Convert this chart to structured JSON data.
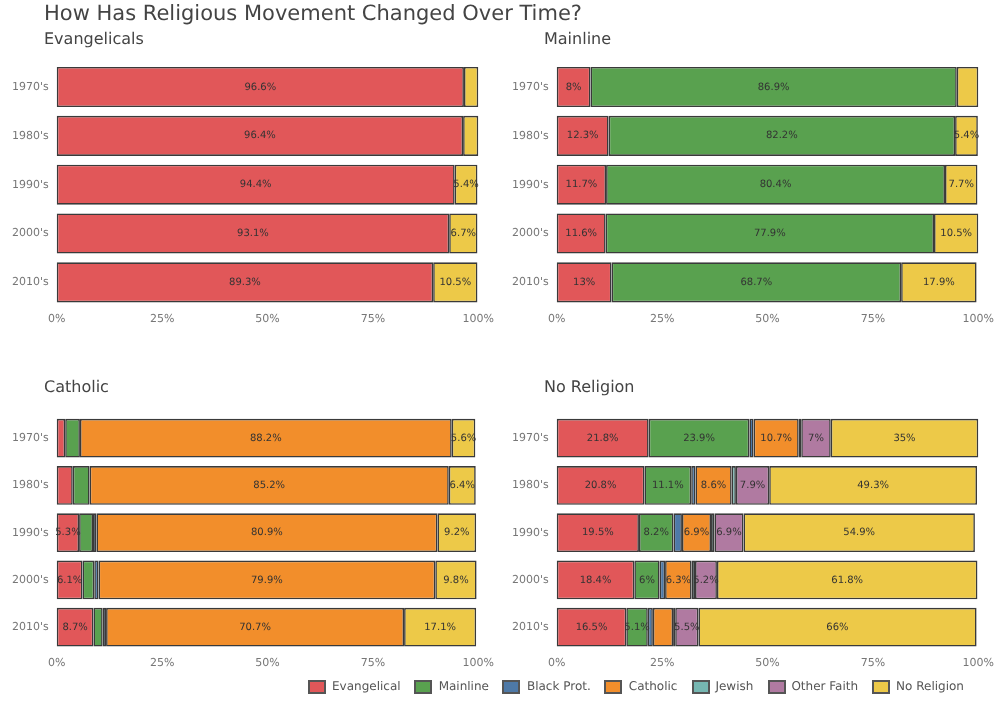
{
  "chart_data": [
    {
      "type": "bar",
      "orientation": "horizontal",
      "stacked": true,
      "title": "How Has Religious Movement Changed Over Time?",
      "subtitle": "Evangelicals",
      "categories": [
        "1970's",
        "1980's",
        "1990's",
        "2000's",
        "2010's"
      ],
      "xlim": [
        0,
        100
      ],
      "xticks": [
        {
          "value": 0,
          "label": "0%"
        },
        {
          "value": 25,
          "label": "25%"
        },
        {
          "value": 50,
          "label": "50%"
        },
        {
          "value": 75,
          "label": "75%"
        },
        {
          "value": 100,
          "label": "100%"
        }
      ],
      "series": [
        {
          "color": "#e15759",
          "values": [
            96.6,
            96.4,
            94.4,
            93.1,
            89.3
          ],
          "value_labels": [
            "96.6%",
            "96.4%",
            "94.4%",
            "93.1%",
            "89.3%"
          ]
        },
        {
          "color": "#edc948",
          "values": [
            3.4,
            3.6,
            5.4,
            6.7,
            10.5
          ],
          "value_labels": [
            null,
            null,
            "5.4%",
            "6.7%",
            "10.5%"
          ]
        }
      ]
    },
    {
      "type": "bar",
      "orientation": "horizontal",
      "stacked": true,
      "title": "Mainline",
      "categories": [
        "1970's",
        "1980's",
        "1990's",
        "2000's",
        "2010's"
      ],
      "xlim": [
        0,
        100
      ],
      "xticks": [
        {
          "value": 0,
          "label": "0%"
        },
        {
          "value": 25,
          "label": "25%"
        },
        {
          "value": 50,
          "label": "50%"
        },
        {
          "value": 75,
          "label": "75%"
        },
        {
          "value": 100,
          "label": "100%"
        }
      ],
      "series": [
        {
          "color": "#e15759",
          "values": [
            8,
            12.3,
            11.7,
            11.6,
            13
          ],
          "value_labels": [
            "8%",
            "12.3%",
            "11.7%",
            "11.6%",
            "13%"
          ]
        },
        {
          "color": "#59a14f",
          "values": [
            86.9,
            82.2,
            80.4,
            77.9,
            68.7
          ],
          "value_labels": [
            "86.9%",
            "82.2%",
            "80.4%",
            "77.9%",
            "68.7%"
          ]
        },
        {
          "color": "#edc948",
          "values": [
            5.1,
            5.4,
            7.7,
            10.5,
            17.9
          ],
          "value_labels": [
            null,
            "5.4%",
            "7.7%",
            "10.5%",
            "17.9%"
          ]
        }
      ]
    },
    {
      "type": "bar",
      "orientation": "horizontal",
      "stacked": true,
      "title": "Catholic",
      "categories": [
        "1970's",
        "1980's",
        "1990's",
        "2000's",
        "2010's"
      ],
      "xlim": [
        0,
        100
      ],
      "xticks": [
        {
          "value": 0,
          "label": "0%"
        },
        {
          "value": 25,
          "label": "25%"
        },
        {
          "value": 50,
          "label": "50%"
        },
        {
          "value": 75,
          "label": "75%"
        },
        {
          "value": 100,
          "label": "100%"
        }
      ],
      "series": [
        {
          "color": "#e15759",
          "values": [
            2,
            3.8,
            5.3,
            6.1,
            8.7
          ],
          "value_labels": [
            null,
            null,
            "5.3%",
            "6.1%",
            "8.7%"
          ]
        },
        {
          "color": "#59a14f",
          "values": [
            3.5,
            4,
            3.3,
            2.8,
            2.2
          ],
          "value_labels": [
            null,
            null,
            null,
            null,
            null
          ]
        },
        {
          "color": "#4e79a7",
          "values": [
            null,
            null,
            0.8,
            1,
            0.8
          ],
          "value_labels": [
            null,
            null,
            null,
            null,
            null
          ]
        },
        {
          "color": "#f28e2b",
          "values": [
            88.2,
            85.2,
            80.9,
            79.9,
            70.7
          ],
          "value_labels": [
            "88.2%",
            "85.2%",
            "80.9%",
            "79.9%",
            "70.7%"
          ]
        },
        {
          "color": "#edc948",
          "values": [
            5.6,
            6.4,
            9.2,
            9.8,
            17.1
          ],
          "value_labels": [
            "5.6%",
            "6.4%",
            "9.2%",
            "9.8%",
            "17.1%"
          ]
        }
      ]
    },
    {
      "type": "bar",
      "orientation": "horizontal",
      "stacked": true,
      "title": "No Religion",
      "legend": "bottom",
      "categories": [
        "1970's",
        "1980's",
        "1990's",
        "2000's",
        "2010's"
      ],
      "xlim": [
        0,
        100
      ],
      "xticks": [
        {
          "value": 0,
          "label": "0%"
        },
        {
          "value": 25,
          "label": "25%"
        },
        {
          "value": 50,
          "label": "50%"
        },
        {
          "value": 75,
          "label": "75%"
        },
        {
          "value": 100,
          "label": "100%"
        }
      ],
      "series": [
        {
          "name": "Evangelical",
          "color": "#e15759",
          "values": [
            21.8,
            20.8,
            19.5,
            18.4,
            16.5
          ],
          "value_labels": [
            "21.8%",
            "20.8%",
            "19.5%",
            "18.4%",
            "16.5%"
          ]
        },
        {
          "name": "Mainline",
          "color": "#59a14f",
          "values": [
            23.9,
            11.1,
            8.2,
            6,
            5.1
          ],
          "value_labels": [
            "23.9%",
            "11.1%",
            "8.2%",
            "6%",
            "5.1%"
          ]
        },
        {
          "name": "Black Prot.",
          "color": "#4e79a7",
          "values": [
            1,
            1,
            2,
            1.3,
            1.2
          ],
          "value_labels": [
            null,
            null,
            null,
            null,
            null
          ]
        },
        {
          "name": "Catholic",
          "color": "#f28e2b",
          "values": [
            10.7,
            8.6,
            6.9,
            6.3,
            4.8
          ],
          "value_labels": [
            "10.7%",
            "8.6%",
            "6.9%",
            "6.3%",
            null
          ]
        },
        {
          "name": "Jewish",
          "color": "#76b7b2",
          "values": [
            0.6,
            1,
            0.8,
            0.8,
            0.5
          ],
          "value_labels": [
            null,
            null,
            null,
            null,
            null
          ]
        },
        {
          "name": "Other Faith",
          "color": "#b07aa1",
          "values": [
            7,
            7.9,
            6.9,
            5.2,
            5.5
          ],
          "value_labels": [
            "7%",
            "7.9%",
            "6.9%",
            "5.2%",
            "5.5%"
          ]
        },
        {
          "name": "No Religion",
          "color": "#edc948",
          "values": [
            35,
            49.3,
            54.9,
            61.8,
            66
          ],
          "value_labels": [
            "35%",
            "49.3%",
            "54.9%",
            "61.8%",
            "66%"
          ]
        }
      ]
    }
  ]
}
